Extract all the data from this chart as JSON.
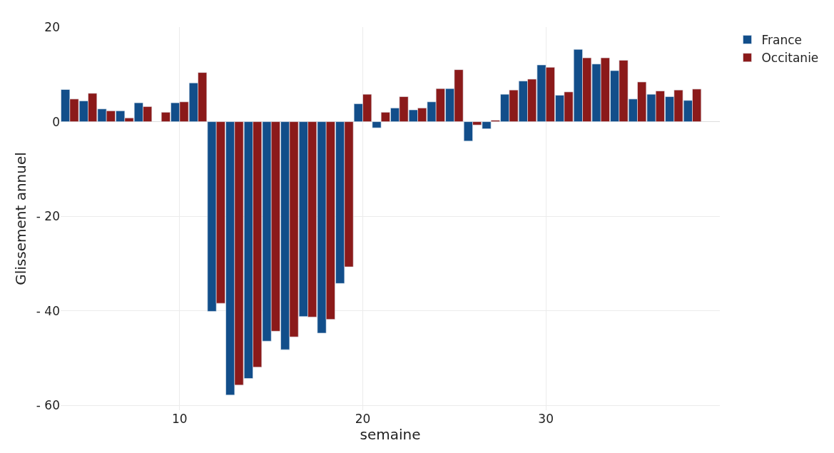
{
  "chart_data": {
    "type": "bar",
    "xlabel": "semaine",
    "ylabel": "Glissement annuel",
    "x": [
      4,
      5,
      6,
      7,
      8,
      9,
      10,
      11,
      12,
      13,
      14,
      15,
      16,
      17,
      18,
      19,
      20,
      21,
      22,
      23,
      24,
      25,
      26,
      27,
      28,
      29,
      30,
      31,
      32,
      33,
      34,
      35,
      36,
      37,
      38
    ],
    "series": [
      {
        "name": "France",
        "color": "#124e8a",
        "values": [
          6.8,
          4.4,
          2.7,
          2.3,
          4.0,
          null,
          4.0,
          8.2,
          -40.1,
          -57.8,
          -54.3,
          -46.4,
          -48.2,
          -41.2,
          -44.7,
          -34.2,
          3.8,
          -1.3,
          2.9,
          2.5,
          4.2,
          7.0,
          -4.1,
          -1.5,
          5.8,
          8.6,
          12.0,
          5.6,
          15.3,
          12.2,
          10.8,
          4.8,
          5.8,
          5.3,
          4.5
        ]
      },
      {
        "name": "Occitanie",
        "color": "#8b1a1a",
        "values": [
          4.8,
          6.0,
          2.3,
          0.8,
          3.2,
          2.0,
          4.2,
          10.4,
          -38.4,
          -55.7,
          -51.9,
          -44.3,
          -45.5,
          -41.3,
          -41.8,
          -30.7,
          5.8,
          2.0,
          5.3,
          2.9,
          7.0,
          11.0,
          -0.7,
          0.3,
          6.7,
          9.0,
          11.5,
          6.3,
          13.5,
          13.5,
          13.0,
          8.4,
          6.5,
          6.7,
          6.9
        ]
      }
    ],
    "xlim": [
      3.5,
      39.5
    ],
    "xticks": [
      10,
      20,
      30
    ],
    "ylim": [
      -61,
      20
    ],
    "yticks": [
      20,
      0,
      {
        "value": -20,
        "label": "- 20"
      },
      {
        "value": -40,
        "label": "- 40"
      },
      {
        "value": -60,
        "label": "- 60"
      }
    ],
    "grid": true,
    "legend": "top right"
  }
}
